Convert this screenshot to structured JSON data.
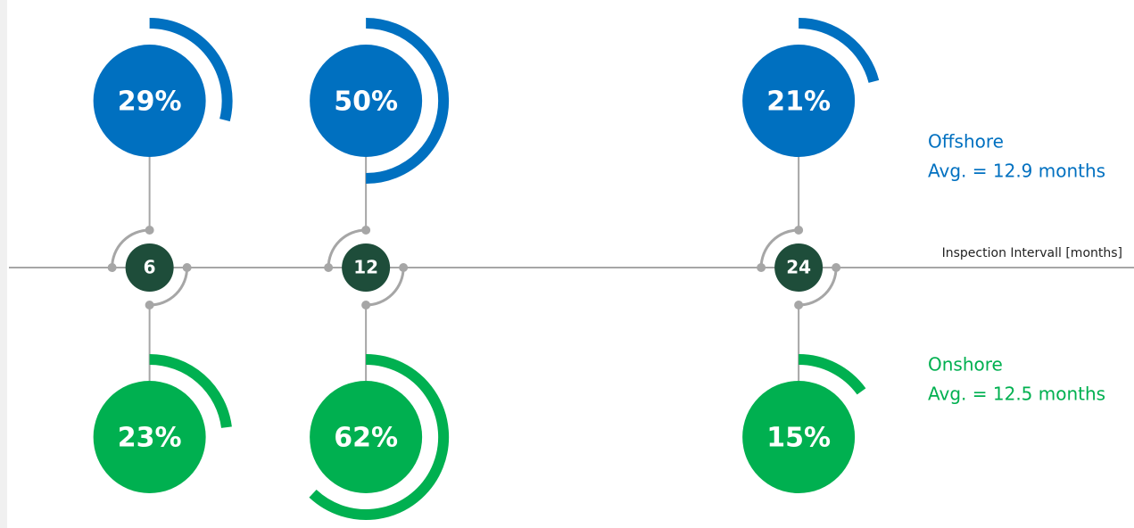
{
  "chart_data": {
    "type": "radial-timeline",
    "x_label": "Inspection Intervall [months]",
    "x": [
      6,
      12,
      24
    ],
    "xlim": [
      2.1,
      33.3
    ],
    "ylim": [
      0,
      100
    ],
    "series": [
      {
        "name": "Offshore",
        "annotation": "Avg. = 12.9 months",
        "color": "#0070c0",
        "values": [
          29,
          50,
          21
        ],
        "value_labels": [
          "29%",
          "50%",
          "21%"
        ]
      },
      {
        "name": "Onshore",
        "annotation": "Avg. = 12.5 months",
        "color": "#00b050",
        "values": [
          23,
          62,
          15
        ],
        "value_labels": [
          "23%",
          "62%",
          "15%"
        ]
      }
    ]
  }
}
